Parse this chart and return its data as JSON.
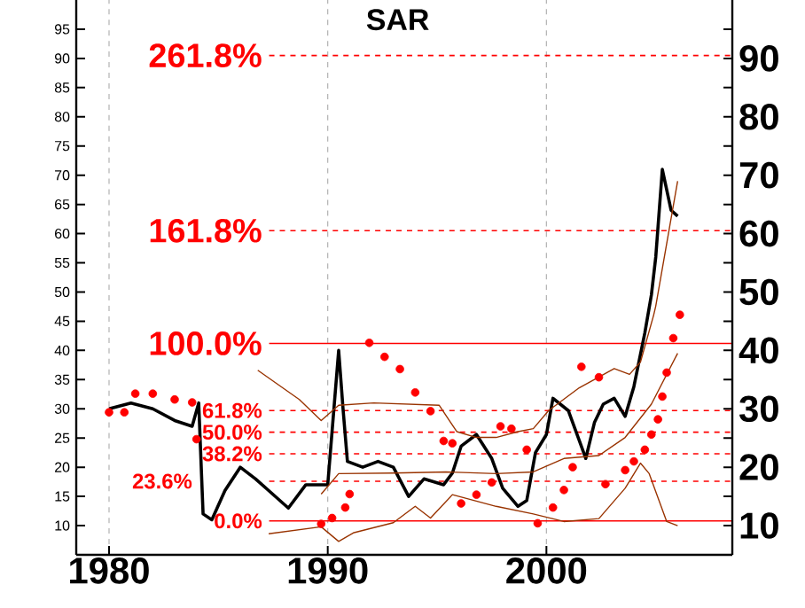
{
  "chart_data": {
    "type": "line",
    "title": "SAR",
    "xlim": [
      1978.5,
      2008.5
    ],
    "xticks": [
      1980,
      1990,
      2000
    ],
    "ylim": [
      5,
      100
    ],
    "yticks": [
      10,
      15,
      20,
      25,
      30,
      35,
      40,
      45,
      50,
      55,
      60,
      65,
      70,
      75,
      80,
      85,
      90,
      95
    ],
    "y2lim": [
      5,
      100
    ],
    "y2ticks": [
      10,
      {
        "value": 15,
        "label": null
      },
      20,
      {
        "value": 25,
        "label": null
      },
      30,
      {
        "value": 35,
        "label": null
      },
      40,
      {
        "value": 45,
        "label": null
      },
      50,
      {
        "value": 55,
        "label": null
      },
      60,
      {
        "value": 65,
        "label": null
      },
      70,
      {
        "value": 75,
        "label": null
      },
      80,
      {
        "value": 85,
        "label": null
      },
      90,
      {
        "value": 95,
        "label": null
      }
    ],
    "grid": "x",
    "series": [
      {
        "type": "line",
        "color": "#000000",
        "line_style": "solid",
        "x": [
          1980.0,
          1981.0,
          1982.0,
          1983.0,
          1983.8,
          1984.1,
          1984.3,
          1984.7,
          1985.3,
          1986.0,
          1986.7,
          1987.3,
          1988.2,
          1989.0,
          1990.0,
          1990.5,
          1990.7,
          1990.9,
          1991.6,
          1992.3,
          1993.0,
          1993.7,
          1994.4,
          1995.3,
          1995.7,
          1996.1,
          1996.8,
          1997.5,
          1998.0,
          1998.7,
          1999.1,
          1999.5,
          2000.0,
          2000.3,
          2001.0,
          2001.5,
          2001.8,
          2002.2,
          2002.6,
          2003.1,
          2003.6,
          2004.0,
          2004.5,
          2004.8,
          2005.0,
          2005.3,
          2005.7,
          2006.0
        ],
        "values": [
          30,
          31,
          30,
          28,
          27,
          31,
          12,
          11,
          16,
          20,
          18,
          16,
          13,
          17,
          17,
          40,
          30,
          21,
          20,
          21,
          20,
          15,
          18,
          17,
          19,
          23.6,
          25.6,
          21.5,
          16.4,
          13.3,
          14.3,
          22.5,
          25.6,
          31.8,
          29.7,
          24.6,
          21.5,
          27.7,
          30.8,
          31.8,
          28.7,
          33.8,
          43,
          49.5,
          56,
          71,
          64,
          63
        ]
      },
      {
        "type": "line",
        "color": "#993300",
        "line_style": "solid",
        "x": [
          1986.8,
          1988.7,
          1989.7,
          1990.5,
          1992.1,
          1995.1,
          1995.9,
          1996.8,
          1997.7,
          1998.7,
          1999.4,
          2000.1,
          2001.5,
          2003.1,
          2003.8,
          2004.3,
          2004.9,
          2005.0,
          2006.0
        ],
        "values": [
          36.6,
          31.6,
          28,
          30.6,
          31,
          30.6,
          26.1,
          25.1,
          25.1,
          26.1,
          26.6,
          29.7,
          33.6,
          36.9,
          35.9,
          38,
          46,
          47.6,
          69
        ]
      },
      {
        "type": "line",
        "color": "#993300",
        "line_style": "solid",
        "x": [
          1989.7,
          1990.5,
          1993.0,
          1995.4,
          1997.7,
          1999.4,
          2000.8,
          2002.4,
          2003.6,
          2004.8,
          2006.0
        ],
        "values": [
          15.4,
          18.9,
          19,
          19.2,
          18.9,
          19.2,
          21.5,
          22,
          25.1,
          30.8,
          39.5
        ]
      },
      {
        "type": "line",
        "color": "#993300",
        "line_style": "solid",
        "x": [
          1987.3,
          1989.7,
          1990.5,
          1991.2,
          1993.0,
          1994.0,
          1994.7,
          1995.7,
          1997.7,
          1999.4,
          2000.8,
          2002.4,
          2003.6,
          2004.3,
          2004.7,
          2005.5,
          2006.0
        ],
        "values": [
          8.6,
          9.8,
          7.3,
          8.8,
          10.5,
          13.3,
          11.3,
          15.3,
          13.3,
          12,
          10.7,
          11.2,
          16.4,
          20.7,
          18.9,
          10.7,
          10
        ]
      },
      {
        "type": "scatter",
        "color": "#ff0000",
        "marker": "circle",
        "x": [
          1980.0,
          1980.7,
          1981.2,
          1982.0,
          1983.0,
          1983.8,
          1984.0,
          1989.7,
          1990.2,
          1990.8,
          1991.0,
          1991.9,
          1992.6,
          1993.3,
          1994.0,
          1994.7,
          1995.3,
          1995.7,
          1996.1,
          1996.8,
          1997.5,
          1997.9,
          1998.4,
          1999.1,
          1999.6,
          2000.3,
          2000.8,
          2001.2,
          2001.6,
          2002.4,
          2002.7,
          2003.6,
          2004.0,
          2004.5,
          2004.8,
          2005.1,
          2005.3,
          2005.5,
          2005.8,
          2006.1
        ],
        "values": [
          29.4,
          29.4,
          32.6,
          32.6,
          31.6,
          31.1,
          24.8,
          10.3,
          11.3,
          13.1,
          15.4,
          41.3,
          38.9,
          36.8,
          32.8,
          29.6,
          24.5,
          24.1,
          13.8,
          15.3,
          17.4,
          27,
          26.6,
          23,
          10.4,
          13.1,
          16.1,
          20,
          37.2,
          35.4,
          17.1,
          19.5,
          21,
          23,
          25.6,
          28.2,
          32.1,
          36.2,
          42.1,
          46.1
        ]
      }
    ],
    "ref_lines": [
      {
        "axis": "y",
        "value": 10.8,
        "color": "#ff0000",
        "line_style": "solid"
      },
      {
        "axis": "y",
        "value": 17.6,
        "color": "#ff0000",
        "line_style": "dashed"
      },
      {
        "axis": "y",
        "value": 22.3,
        "color": "#ff0000",
        "line_style": "dashed"
      },
      {
        "axis": "y",
        "value": 26,
        "color": "#ff0000",
        "line_style": "dashed"
      },
      {
        "axis": "y",
        "value": 29.7,
        "color": "#ff0000",
        "line_style": "dashed"
      },
      {
        "axis": "y",
        "value": 41.2,
        "color": "#ff0000",
        "line_style": "solid"
      },
      {
        "axis": "y",
        "value": 60.5,
        "color": "#ff0000",
        "line_style": "dashed"
      },
      {
        "axis": "y",
        "value": 90.5,
        "color": "#ff0000",
        "line_style": "dashed"
      }
    ],
    "annotations": [
      "0.0%",
      "23.6%",
      "38.2%",
      "50.0%",
      "61.8%",
      "100.0%",
      "161.8%",
      "261.8%"
    ]
  }
}
